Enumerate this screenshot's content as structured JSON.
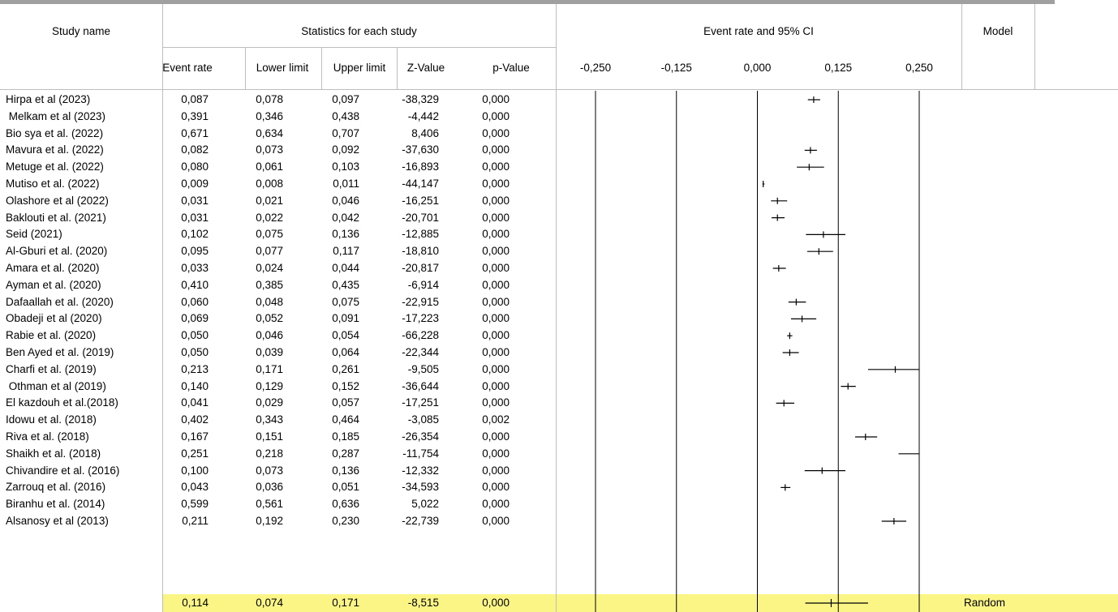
{
  "header": {
    "study_name": "Study name",
    "stats_group": "Statistics for each study",
    "plot_title": "Event rate and 95% CI",
    "model": "Model",
    "columns": [
      "Event rate",
      "Lower limit",
      "Upper limit",
      "Z-Value",
      "p-Value"
    ]
  },
  "summary_row": {
    "event_rate": "0,114",
    "lower": "0,074",
    "upper": "0,171",
    "z": "-8,515",
    "p": "0,000",
    "model": "Random"
  },
  "chart_data": {
    "type": "forest",
    "title": "Event rate and 95% CI",
    "xlabel": "",
    "ylabel": "",
    "x_range": [
      -0.25,
      0.25
    ],
    "x_ticks": [
      -0.25,
      -0.125,
      0.0,
      0.125,
      0.25
    ],
    "x_tick_labels": [
      "-0,250",
      "-0,125",
      "0,000",
      "0,125",
      "0,250"
    ],
    "grid": true,
    "studies": [
      {
        "name": "Hirpa et al (2023)",
        "event_rate": 0.087,
        "lower": 0.078,
        "upper": 0.097,
        "z": -38.329,
        "p": 0.0,
        "er_label": "0,087",
        "ll_label": "0,078",
        "ul_label": "0,097",
        "z_label": "-38,329",
        "p_label": "0,000"
      },
      {
        "name": " Melkam et al (2023)",
        "event_rate": 0.391,
        "lower": 0.346,
        "upper": 0.438,
        "z": -4.442,
        "p": 0.0,
        "er_label": "0,391",
        "ll_label": "0,346",
        "ul_label": "0,438",
        "z_label": "-4,442",
        "p_label": "0,000"
      },
      {
        "name": "Bio sya et al. (2022)",
        "event_rate": 0.671,
        "lower": 0.634,
        "upper": 0.707,
        "z": 8.406,
        "p": 0.0,
        "er_label": "0,671",
        "ll_label": "0,634",
        "ul_label": "0,707",
        "z_label": "8,406",
        "p_label": "0,000"
      },
      {
        "name": "Mavura et al. (2022)",
        "event_rate": 0.082,
        "lower": 0.073,
        "upper": 0.092,
        "z": -37.63,
        "p": 0.0,
        "er_label": "0,082",
        "ll_label": "0,073",
        "ul_label": "0,092",
        "z_label": "-37,630",
        "p_label": "0,000"
      },
      {
        "name": "Metuge et al. (2022)",
        "event_rate": 0.08,
        "lower": 0.061,
        "upper": 0.103,
        "z": -16.893,
        "p": 0.0,
        "er_label": "0,080",
        "ll_label": "0,061",
        "ul_label": "0,103",
        "z_label": "-16,893",
        "p_label": "0,000"
      },
      {
        "name": "Mutiso et al. (2022)",
        "event_rate": 0.009,
        "lower": 0.008,
        "upper": 0.011,
        "z": -44.147,
        "p": 0.0,
        "er_label": "0,009",
        "ll_label": "0,008",
        "ul_label": "0,011",
        "z_label": "-44,147",
        "p_label": "0,000"
      },
      {
        "name": "Olashore et al (2022)",
        "event_rate": 0.031,
        "lower": 0.021,
        "upper": 0.046,
        "z": -16.251,
        "p": 0.0,
        "er_label": "0,031",
        "ll_label": "0,021",
        "ul_label": "0,046",
        "z_label": "-16,251",
        "p_label": "0,000"
      },
      {
        "name": "Baklouti et al. (2021)",
        "event_rate": 0.031,
        "lower": 0.022,
        "upper": 0.042,
        "z": -20.701,
        "p": 0.0,
        "er_label": "0,031",
        "ll_label": "0,022",
        "ul_label": "0,042",
        "z_label": "-20,701",
        "p_label": "0,000"
      },
      {
        "name": "Seid (2021)",
        "event_rate": 0.102,
        "lower": 0.075,
        "upper": 0.136,
        "z": -12.885,
        "p": 0.0,
        "er_label": "0,102",
        "ll_label": "0,075",
        "ul_label": "0,136",
        "z_label": "-12,885",
        "p_label": "0,000"
      },
      {
        "name": "Al-Gburi et al. (2020)",
        "event_rate": 0.095,
        "lower": 0.077,
        "upper": 0.117,
        "z": -18.81,
        "p": 0.0,
        "er_label": "0,095",
        "ll_label": "0,077",
        "ul_label": "0,117",
        "z_label": "-18,810",
        "p_label": "0,000"
      },
      {
        "name": "Amara et al. (2020)",
        "event_rate": 0.033,
        "lower": 0.024,
        "upper": 0.044,
        "z": -20.817,
        "p": 0.0,
        "er_label": "0,033",
        "ll_label": "0,024",
        "ul_label": "0,044",
        "z_label": "-20,817",
        "p_label": "0,000"
      },
      {
        "name": "Ayman et al. (2020)",
        "event_rate": 0.41,
        "lower": 0.385,
        "upper": 0.435,
        "z": -6.914,
        "p": 0.0,
        "er_label": "0,410",
        "ll_label": "0,385",
        "ul_label": "0,435",
        "z_label": "-6,914",
        "p_label": "0,000"
      },
      {
        "name": "Dafaallah et al. (2020)",
        "event_rate": 0.06,
        "lower": 0.048,
        "upper": 0.075,
        "z": -22.915,
        "p": 0.0,
        "er_label": "0,060",
        "ll_label": "0,048",
        "ul_label": "0,075",
        "z_label": "-22,915",
        "p_label": "0,000"
      },
      {
        "name": "Obadeji et al (2020)",
        "event_rate": 0.069,
        "lower": 0.052,
        "upper": 0.091,
        "z": -17.223,
        "p": 0.0,
        "er_label": "0,069",
        "ll_label": "0,052",
        "ul_label": "0,091",
        "z_label": "-17,223",
        "p_label": "0,000"
      },
      {
        "name": "Rabie et al. (2020)",
        "event_rate": 0.05,
        "lower": 0.046,
        "upper": 0.054,
        "z": -66.228,
        "p": 0.0,
        "er_label": "0,050",
        "ll_label": "0,046",
        "ul_label": "0,054",
        "z_label": "-66,228",
        "p_label": "0,000"
      },
      {
        "name": "Ben Ayed et al. (2019)",
        "event_rate": 0.05,
        "lower": 0.039,
        "upper": 0.064,
        "z": -22.344,
        "p": 0.0,
        "er_label": "0,050",
        "ll_label": "0,039",
        "ul_label": "0,064",
        "z_label": "-22,344",
        "p_label": "0,000"
      },
      {
        "name": "Charfi et al. (2019)",
        "event_rate": 0.213,
        "lower": 0.171,
        "upper": 0.261,
        "z": -9.505,
        "p": 0.0,
        "er_label": "0,213",
        "ll_label": "0,171",
        "ul_label": "0,261",
        "z_label": "-9,505",
        "p_label": "0,000"
      },
      {
        "name": " Othman et al (2019)",
        "event_rate": 0.14,
        "lower": 0.129,
        "upper": 0.152,
        "z": -36.644,
        "p": 0.0,
        "er_label": "0,140",
        "ll_label": "0,129",
        "ul_label": "0,152",
        "z_label": "-36,644",
        "p_label": "0,000"
      },
      {
        "name": "El kazdouh et al.(2018)",
        "event_rate": 0.041,
        "lower": 0.029,
        "upper": 0.057,
        "z": -17.251,
        "p": 0.0,
        "er_label": "0,041",
        "ll_label": "0,029",
        "ul_label": "0,057",
        "z_label": "-17,251",
        "p_label": "0,000"
      },
      {
        "name": "Idowu et al. (2018)",
        "event_rate": 0.402,
        "lower": 0.343,
        "upper": 0.464,
        "z": -3.085,
        "p": 0.002,
        "er_label": "0,402",
        "ll_label": "0,343",
        "ul_label": "0,464",
        "z_label": "-3,085",
        "p_label": "0,002"
      },
      {
        "name": "Riva et al. (2018)",
        "event_rate": 0.167,
        "lower": 0.151,
        "upper": 0.185,
        "z": -26.354,
        "p": 0.0,
        "er_label": "0,167",
        "ll_label": "0,151",
        "ul_label": "0,185",
        "z_label": "-26,354",
        "p_label": "0,000"
      },
      {
        "name": "Shaikh et al. (2018)",
        "event_rate": 0.251,
        "lower": 0.218,
        "upper": 0.287,
        "z": -11.754,
        "p": 0.0,
        "er_label": "0,251",
        "ll_label": "0,218",
        "ul_label": "0,287",
        "z_label": "-11,754",
        "p_label": "0,000"
      },
      {
        "name": "Chivandire et al. (2016)",
        "event_rate": 0.1,
        "lower": 0.073,
        "upper": 0.136,
        "z": -12.332,
        "p": 0.0,
        "er_label": "0,100",
        "ll_label": "0,073",
        "ul_label": "0,136",
        "z_label": "-12,332",
        "p_label": "0,000"
      },
      {
        "name": "Zarrouq et al. (2016)",
        "event_rate": 0.043,
        "lower": 0.036,
        "upper": 0.051,
        "z": -34.593,
        "p": 0.0,
        "er_label": "0,043",
        "ll_label": "0,036",
        "ul_label": "0,051",
        "z_label": "-34,593",
        "p_label": "0,000"
      },
      {
        "name": "Biranhu et al. (2014)",
        "event_rate": 0.599,
        "lower": 0.561,
        "upper": 0.636,
        "z": 5.022,
        "p": 0.0,
        "er_label": "0,599",
        "ll_label": "0,561",
        "ul_label": "0,636",
        "z_label": "5,022",
        "p_label": "0,000"
      },
      {
        "name": "Alsanosy et al (2013)",
        "event_rate": 0.211,
        "lower": 0.192,
        "upper": 0.23,
        "z": -22.739,
        "p": 0.0,
        "er_label": "0,211",
        "ll_label": "0,192",
        "ul_label": "0,230",
        "z_label": "-22,739",
        "p_label": "0,000"
      }
    ],
    "summary": {
      "event_rate": 0.114,
      "lower": 0.074,
      "upper": 0.171,
      "z": -8.515,
      "p": 0.0,
      "model": "Random"
    }
  }
}
